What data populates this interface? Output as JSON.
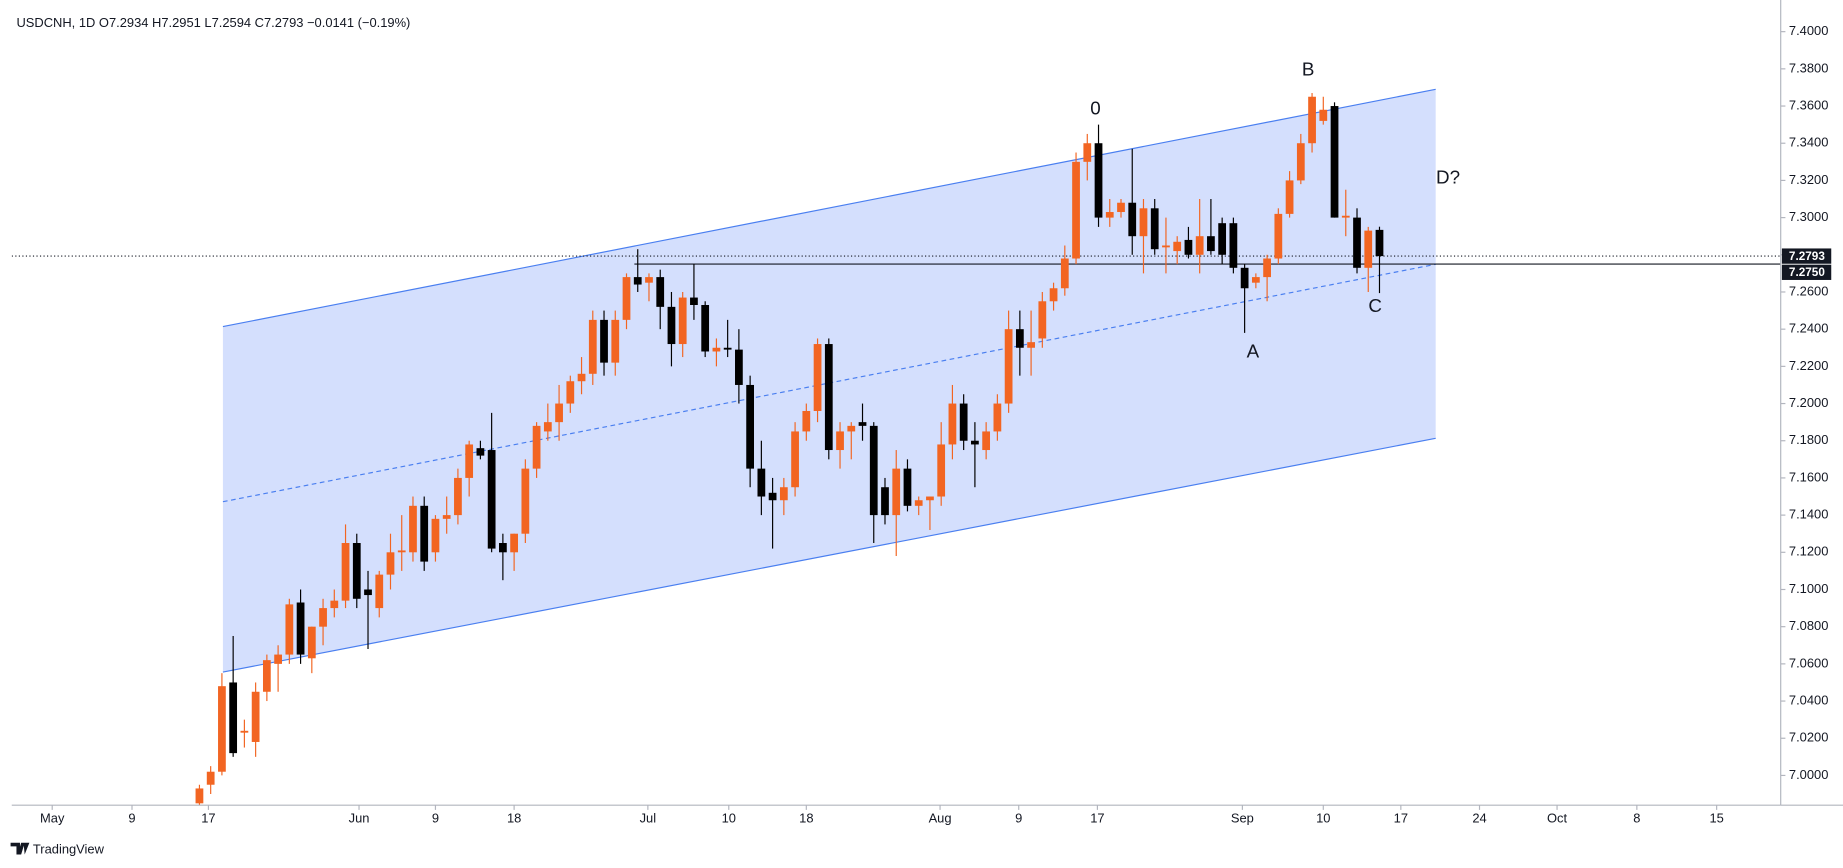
{
  "chart_data": {
    "type": "candlestick",
    "title": "USDCNH, 1D  O7.2934 H7.2951 L7.2594 C7.2793 −0.0141 (−0.19%)",
    "footer": "TradingView",
    "up_color": "#f26522",
    "down_color": "#000000",
    "open": [
      6.985,
      6.995,
      7.002,
      7.05,
      7.023,
      7.018,
      7.045,
      7.06,
      7.065,
      7.093,
      7.063,
      7.08,
      7.09,
      7.094,
      7.125,
      7.1,
      7.09,
      7.108,
      7.12,
      7.12,
      7.145,
      7.12,
      7.138,
      7.14,
      7.16,
      7.176,
      7.175,
      7.125,
      7.12,
      7.13,
      7.165,
      7.185,
      7.19,
      7.2,
      7.212,
      7.216,
      7.245,
      7.222,
      7.245,
      7.268,
      7.265,
      7.268,
      7.252,
      7.232,
      7.257,
      7.253,
      7.228,
      7.23,
      7.229,
      7.21,
      7.165,
      7.152,
      7.148,
      7.155,
      7.185,
      7.196,
      7.232,
      7.175,
      7.185,
      7.19,
      7.188,
      7.155,
      7.14,
      7.165,
      7.145,
      7.148,
      7.15,
      7.178,
      7.2,
      7.18,
      7.175,
      7.185,
      7.2,
      7.24,
      7.23,
      7.235,
      7.255,
      7.262,
      7.278,
      7.33,
      7.34,
      7.3,
      7.303,
      7.308,
      7.29,
      7.305,
      7.284,
      7.282,
      7.288,
      7.28,
      7.29,
      7.297,
      7.297,
      7.273,
      7.265,
      7.268,
      7.278,
      7.302,
      7.32,
      7.34,
      7.352,
      7.36,
      7.3,
      7.3,
      7.273,
      7.2934
    ],
    "high": [
      6.995,
      7.005,
      7.055,
      7.075,
      7.03,
      7.05,
      7.065,
      7.07,
      7.095,
      7.1,
      7.08,
      7.095,
      7.1,
      7.135,
      7.13,
      7.11,
      7.11,
      7.13,
      7.14,
      7.15,
      7.15,
      7.14,
      7.15,
      7.165,
      7.18,
      7.18,
      7.195,
      7.13,
      7.13,
      7.17,
      7.19,
      7.2,
      7.21,
      7.215,
      7.225,
      7.25,
      7.25,
      7.25,
      7.27,
      7.283,
      7.27,
      7.272,
      7.26,
      7.26,
      7.275,
      7.255,
      7.235,
      7.245,
      7.24,
      7.215,
      7.18,
      7.16,
      7.16,
      7.19,
      7.2,
      7.235,
      7.235,
      7.19,
      7.19,
      7.2,
      7.19,
      7.16,
      7.175,
      7.17,
      7.15,
      7.15,
      7.19,
      7.21,
      7.205,
      7.19,
      7.19,
      7.205,
      7.25,
      7.25,
      7.25,
      7.26,
      7.265,
      7.285,
      7.335,
      7.345,
      7.35,
      7.31,
      7.31,
      7.337,
      7.31,
      7.31,
      7.3,
      7.29,
      7.295,
      7.31,
      7.31,
      7.3,
      7.3,
      7.275,
      7.27,
      7.28,
      7.305,
      7.325,
      7.345,
      7.367,
      7.365,
      7.362,
      7.315,
      7.305,
      7.295,
      7.2951
    ],
    "low": [
      6.98,
      6.99,
      7.0,
      7.01,
      7.015,
      7.01,
      7.04,
      7.045,
      7.06,
      7.06,
      7.055,
      7.07,
      7.085,
      7.09,
      7.09,
      7.068,
      7.085,
      7.1,
      7.11,
      7.115,
      7.11,
      7.115,
      7.13,
      7.135,
      7.15,
      7.17,
      7.12,
      7.105,
      7.11,
      7.125,
      7.16,
      7.18,
      7.18,
      7.195,
      7.205,
      7.21,
      7.215,
      7.215,
      7.24,
      7.26,
      7.255,
      7.24,
      7.22,
      7.225,
      7.245,
      7.225,
      7.22,
      7.225,
      7.2,
      7.155,
      7.14,
      7.122,
      7.14,
      7.15,
      7.18,
      7.19,
      7.17,
      7.165,
      7.17,
      7.18,
      7.125,
      7.135,
      7.118,
      7.142,
      7.14,
      7.132,
      7.145,
      7.17,
      7.175,
      7.155,
      7.17,
      7.18,
      7.195,
      7.215,
      7.215,
      7.23,
      7.25,
      7.258,
      7.275,
      7.32,
      7.295,
      7.295,
      7.3,
      7.28,
      7.27,
      7.28,
      7.27,
      7.275,
      7.278,
      7.27,
      7.28,
      7.275,
      7.27,
      7.238,
      7.262,
      7.255,
      7.275,
      7.3,
      7.318,
      7.335,
      7.35,
      7.3,
      7.29,
      7.27,
      7.26,
      7.2594
    ],
    "close": [
      6.993,
      7.002,
      7.048,
      7.012,
      7.024,
      7.045,
      7.062,
      7.065,
      7.092,
      7.065,
      7.08,
      7.09,
      7.094,
      7.125,
      7.095,
      7.097,
      7.108,
      7.12,
      7.121,
      7.145,
      7.115,
      7.138,
      7.14,
      7.16,
      7.178,
      7.172,
      7.122,
      7.12,
      7.13,
      7.165,
      7.188,
      7.19,
      7.2,
      7.212,
      7.216,
      7.245,
      7.222,
      7.245,
      7.268,
      7.264,
      7.268,
      7.252,
      7.232,
      7.257,
      7.253,
      7.228,
      7.23,
      7.229,
      7.21,
      7.165,
      7.15,
      7.148,
      7.155,
      7.185,
      7.196,
      7.232,
      7.175,
      7.185,
      7.188,
      7.188,
      7.14,
      7.14,
      7.165,
      7.145,
      7.148,
      7.15,
      7.178,
      7.2,
      7.18,
      7.178,
      7.185,
      7.2,
      7.24,
      7.23,
      7.233,
      7.255,
      7.262,
      7.278,
      7.33,
      7.34,
      7.3,
      7.303,
      7.308,
      7.29,
      7.305,
      7.283,
      7.285,
      7.287,
      7.28,
      7.29,
      7.282,
      7.28,
      7.273,
      7.262,
      7.268,
      7.278,
      7.302,
      7.32,
      7.34,
      7.365,
      7.358,
      7.3,
      7.301,
      7.273,
      7.293,
      7.2793
    ],
    "xlim": [
      -16.7,
      140.7
    ],
    "xticks": [
      {
        "value": -13.1,
        "label": "May"
      },
      {
        "value": -6.0,
        "label": "9"
      },
      {
        "value": 0.8,
        "label": "17"
      },
      {
        "value": 14.2,
        "label": "Jun"
      },
      {
        "value": 21.0,
        "label": "9"
      },
      {
        "value": 28.0,
        "label": "18"
      },
      {
        "value": 39.9,
        "label": "Jul"
      },
      {
        "value": 47.1,
        "label": "10"
      },
      {
        "value": 54.0,
        "label": "18"
      },
      {
        "value": 65.9,
        "label": "Aug"
      },
      {
        "value": 72.9,
        "label": "9"
      },
      {
        "value": 79.9,
        "label": "17"
      },
      {
        "value": 92.8,
        "label": "Sep"
      },
      {
        "value": 100.0,
        "label": "10"
      },
      {
        "value": 106.9,
        "label": "17"
      },
      {
        "value": 113.9,
        "label": "24"
      },
      {
        "value": 120.8,
        "label": "Oct"
      },
      {
        "value": 127.9,
        "label": "8"
      },
      {
        "value": 135.0,
        "label": "15"
      }
    ],
    "ylim": [
      6.984,
      7.417
    ],
    "yticks": [
      {
        "value": 7.0,
        "label": "7.0000"
      },
      {
        "value": 7.02,
        "label": "7.0200"
      },
      {
        "value": 7.04,
        "label": "7.0400"
      },
      {
        "value": 7.06,
        "label": "7.0600"
      },
      {
        "value": 7.08,
        "label": "7.0800"
      },
      {
        "value": 7.1,
        "label": "7.1000"
      },
      {
        "value": 7.12,
        "label": "7.1200"
      },
      {
        "value": 7.14,
        "label": "7.1400"
      },
      {
        "value": 7.16,
        "label": "7.1600"
      },
      {
        "value": 7.18,
        "label": "7.1800"
      },
      {
        "value": 7.2,
        "label": "7.2000"
      },
      {
        "value": 7.22,
        "label": "7.2200"
      },
      {
        "value": 7.24,
        "label": "7.2400"
      },
      {
        "value": 7.26,
        "label": "7.2600"
      },
      {
        "value": 7.28,
        "label": "7.2800"
      },
      {
        "value": 7.3,
        "label": "7.3000"
      },
      {
        "value": 7.32,
        "label": "7.3200"
      },
      {
        "value": 7.34,
        "label": "7.3400"
      },
      {
        "value": 7.36,
        "label": "7.3600"
      },
      {
        "value": 7.38,
        "label": "7.3800"
      },
      {
        "value": 7.4,
        "label": "7.4000"
      }
    ],
    "channel": {
      "start": 2.09,
      "end": 110.0,
      "upper": [
        7.2414,
        7.369
      ],
      "middle": [
        7.1472,
        7.2749
      ],
      "lower": [
        7.0556,
        7.1813
      ],
      "color": "#4a7ff0",
      "fill": "#cfdcfd"
    },
    "price_lines": [
      {
        "value": 7.2793,
        "label": "7.2793",
        "style": "dotted",
        "start": -16.7
      },
      {
        "value": 7.275,
        "label": "7.2750",
        "style": "solid",
        "start": 38.7
      }
    ],
    "annotations": [
      "0",
      "B",
      "D?",
      "A",
      "C"
    ]
  }
}
